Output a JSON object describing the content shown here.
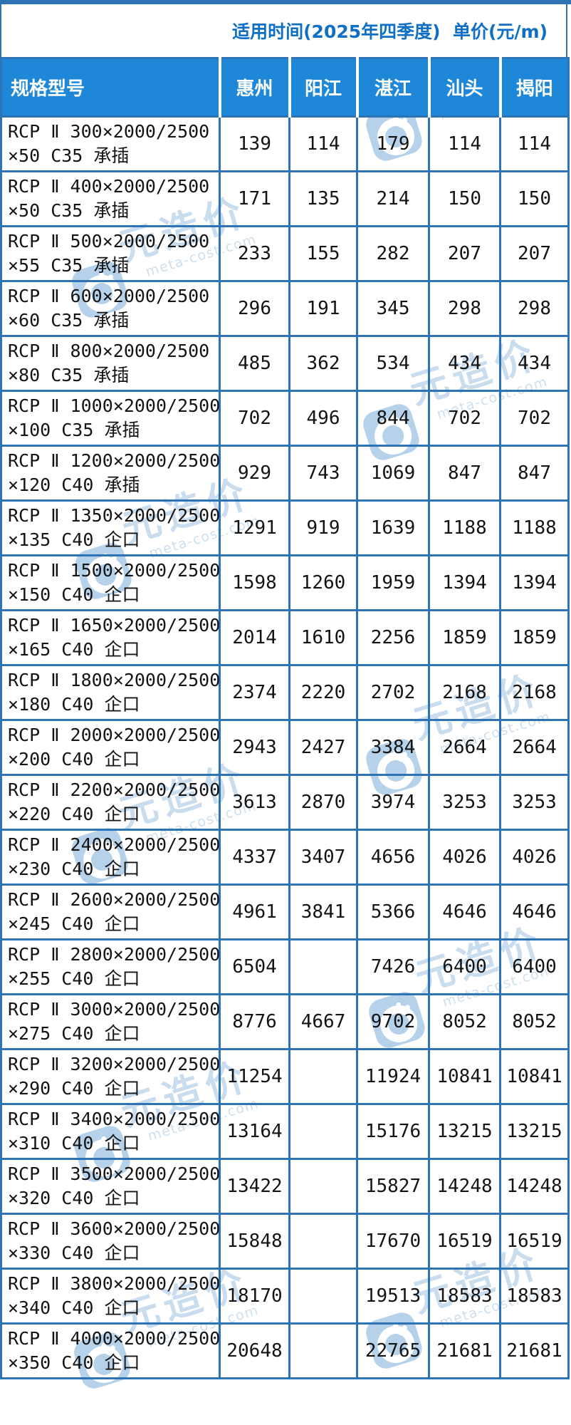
{
  "title_bar": {
    "text": "适用时间(2025年四季度)  单价(元/m)"
  },
  "watermark": {
    "brand": "元造价",
    "domain": "meta-cost.com"
  },
  "colors": {
    "border": "#2e74b5",
    "header_bg": "#1e87d8",
    "header_text": "#ffffff",
    "title_text": "#0f6fc5",
    "body_text": "#141414",
    "wm_badge": "#b3d0ea",
    "wm_text": "#c8dcef",
    "wm_domain": "#ccdeee"
  },
  "table": {
    "spec_header": "规格型号",
    "city_headers": [
      "惠州",
      "阳江",
      "湛江",
      "汕头",
      "揭阳"
    ],
    "rows": [
      {
        "spec_line1": "RCP Ⅱ 300×2000/2500",
        "spec_line2": "×50 C35 承插",
        "prices": [
          "139",
          "114",
          "179",
          "114",
          "114"
        ]
      },
      {
        "spec_line1": "RCP Ⅱ 400×2000/2500",
        "spec_line2": "×50 C35 承插",
        "prices": [
          "171",
          "135",
          "214",
          "150",
          "150"
        ]
      },
      {
        "spec_line1": "RCP Ⅱ 500×2000/2500",
        "spec_line2": "×55 C35 承插",
        "prices": [
          "233",
          "155",
          "282",
          "207",
          "207"
        ]
      },
      {
        "spec_line1": "RCP Ⅱ 600×2000/2500",
        "spec_line2": "×60 C35 承插",
        "prices": [
          "296",
          "191",
          "345",
          "298",
          "298"
        ]
      },
      {
        "spec_line1": "RCP Ⅱ 800×2000/2500",
        "spec_line2": "×80 C35 承插",
        "prices": [
          "485",
          "362",
          "534",
          "434",
          "434"
        ]
      },
      {
        "spec_line1": "RCP Ⅱ 1000×2000/2500",
        "spec_line2": "×100 C35 承插",
        "prices": [
          "702",
          "496",
          "844",
          "702",
          "702"
        ]
      },
      {
        "spec_line1": "RCP Ⅱ 1200×2000/2500",
        "spec_line2": "×120 C40 承插",
        "prices": [
          "929",
          "743",
          "1069",
          "847",
          "847"
        ]
      },
      {
        "spec_line1": "RCP Ⅱ 1350×2000/2500",
        "spec_line2": "×135 C40 企口",
        "prices": [
          "1291",
          "919",
          "1639",
          "1188",
          "1188"
        ]
      },
      {
        "spec_line1": "RCP Ⅱ 1500×2000/2500",
        "spec_line2": "×150 C40 企口",
        "prices": [
          "1598",
          "1260",
          "1959",
          "1394",
          "1394"
        ]
      },
      {
        "spec_line1": "RCP Ⅱ 1650×2000/2500",
        "spec_line2": "×165 C40 企口",
        "prices": [
          "2014",
          "1610",
          "2256",
          "1859",
          "1859"
        ]
      },
      {
        "spec_line1": "RCP Ⅱ 1800×2000/2500",
        "spec_line2": "×180 C40 企口",
        "prices": [
          "2374",
          "2220",
          "2702",
          "2168",
          "2168"
        ]
      },
      {
        "spec_line1": "RCP Ⅱ 2000×2000/2500",
        "spec_line2": "×200 C40 企口",
        "prices": [
          "2943",
          "2427",
          "3384",
          "2664",
          "2664"
        ]
      },
      {
        "spec_line1": "RCP Ⅱ 2200×2000/2500",
        "spec_line2": "×220 C40 企口",
        "prices": [
          "3613",
          "2870",
          "3974",
          "3253",
          "3253"
        ]
      },
      {
        "spec_line1": "RCP Ⅱ 2400×2000/2500",
        "spec_line2": "×230 C40 企口",
        "prices": [
          "4337",
          "3407",
          "4656",
          "4026",
          "4026"
        ]
      },
      {
        "spec_line1": "RCP Ⅱ 2600×2000/2500",
        "spec_line2": "×245 C40 企口",
        "prices": [
          "4961",
          "3841",
          "5366",
          "4646",
          "4646"
        ]
      },
      {
        "spec_line1": "RCP Ⅱ 2800×2000/2500",
        "spec_line2": "×255 C40 企口",
        "prices": [
          "6504",
          "",
          "7426",
          "6400",
          "6400"
        ]
      },
      {
        "spec_line1": "RCP Ⅱ 3000×2000/2500",
        "spec_line2": "×275 C40 企口",
        "prices": [
          "8776",
          "4667",
          "9702",
          "8052",
          "8052"
        ]
      },
      {
        "spec_line1": "RCP Ⅱ 3200×2000/2500",
        "spec_line2": "×290 C40 企口",
        "prices": [
          "11254",
          "",
          "11924",
          "10841",
          "10841"
        ]
      },
      {
        "spec_line1": "RCP Ⅱ 3400×2000/2500",
        "spec_line2": "×310 C40 企口",
        "prices": [
          "13164",
          "",
          "15176",
          "13215",
          "13215"
        ]
      },
      {
        "spec_line1": "RCP Ⅱ 3500×2000/2500",
        "spec_line2": "×320 C40 企口",
        "prices": [
          "13422",
          "",
          "15827",
          "14248",
          "14248"
        ]
      },
      {
        "spec_line1": "RCP Ⅱ 3600×2000/2500",
        "spec_line2": "×330 C40 企口",
        "prices": [
          "15848",
          "",
          "17670",
          "16519",
          "16519"
        ]
      },
      {
        "spec_line1": "RCP Ⅱ 3800×2000/2500",
        "spec_line2": "×340 C40 企口",
        "prices": [
          "18170",
          "",
          "19513",
          "18583",
          "18583"
        ]
      },
      {
        "spec_line1": "RCP Ⅱ 4000×2000/2500",
        "spec_line2": "×350 C40 企口",
        "prices": [
          "20648",
          "",
          "22765",
          "21681",
          "21681"
        ]
      }
    ]
  }
}
